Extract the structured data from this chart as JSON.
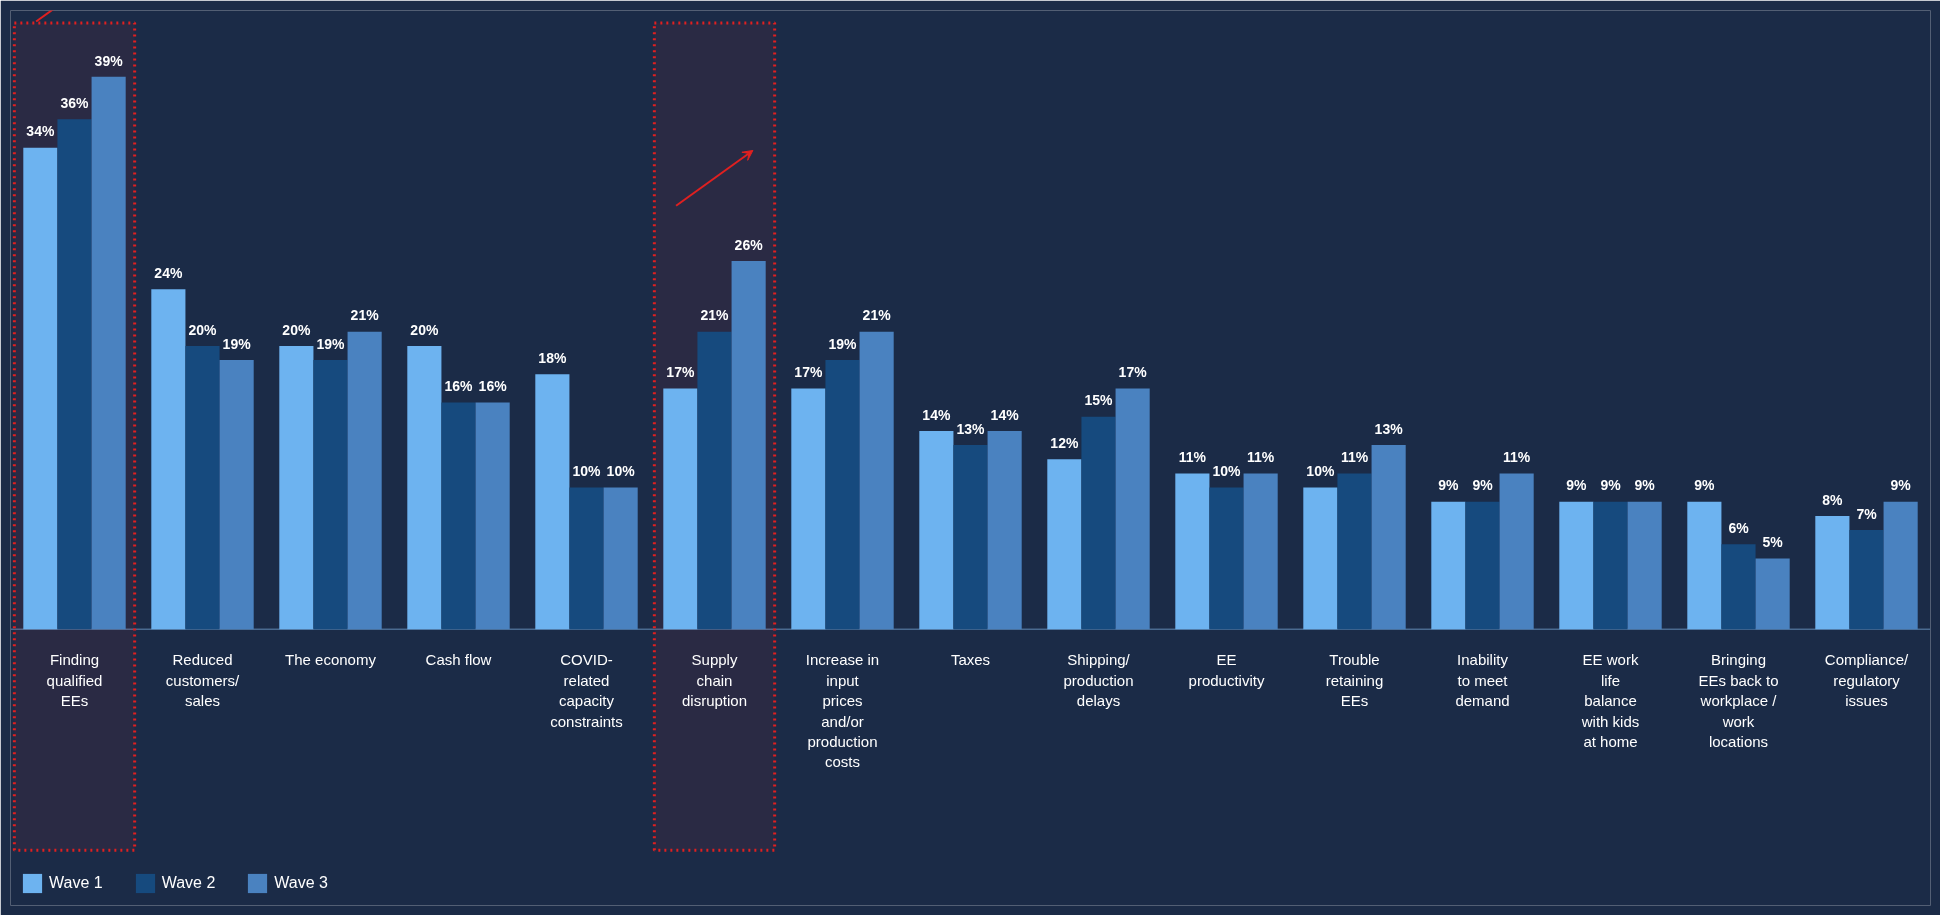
{
  "chart_data": {
    "type": "bar",
    "categories": [
      "Finding qualified EEs",
      "Reduced customers/ sales",
      "The economy",
      "Cash flow",
      "COVID-related capacity constraints",
      "Supply chain disruption",
      "Increase in input prices and/or production costs",
      "Taxes",
      "Shipping/ production delays",
      "EE productivity",
      "Trouble retaining EEs",
      "Inability to meet demand",
      "EE work life balance with kids at home",
      "Bringing EEs back to workplace / work locations",
      "Compliance/ regulatory issues"
    ],
    "series": [
      {
        "name": "Wave 1",
        "color": "#6db3f0",
        "values": [
          34,
          24,
          20,
          20,
          18,
          17,
          17,
          14,
          12,
          11,
          10,
          9,
          9,
          9,
          8
        ],
        "value_labels": [
          "34%",
          "24%",
          "20%",
          "20%",
          "18%",
          "17%",
          "17%",
          "14%",
          "12%",
          "11%",
          "10%",
          "9%",
          "9%",
          "9%",
          "8%"
        ]
      },
      {
        "name": "Wave 2",
        "color": "#164a7e",
        "values": [
          36,
          20,
          19,
          16,
          10,
          21,
          19,
          13,
          15,
          10,
          11,
          9,
          9,
          6,
          7
        ],
        "value_labels": [
          "36%",
          "20%",
          "19%",
          "16%",
          "10%",
          "21%",
          "19%",
          "13%",
          "15%",
          "10%",
          "11%",
          "9%",
          "9%",
          "6%",
          "7%"
        ]
      },
      {
        "name": "Wave 3",
        "color": "#4a82c0",
        "values": [
          39,
          19,
          21,
          16,
          10,
          26,
          21,
          14,
          17,
          11,
          13,
          11,
          9,
          5,
          9
        ],
        "value_labels": [
          "39%",
          "19%",
          "21%",
          "16%",
          "10%",
          "26%",
          "21%",
          "14%",
          "17%",
          "11%",
          "13%",
          "11%",
          "9%",
          "5%",
          "9%"
        ]
      }
    ],
    "bands": [
      {
        "axis": "x",
        "from": "Finding qualified EEs",
        "to": "Finding qualified EEs",
        "color": "#e02020"
      },
      {
        "axis": "x",
        "from": "Supply chain disruption",
        "to": "Supply chain disruption",
        "color": "#e02020"
      }
    ],
    "legend": "bottom left",
    "grid": false
  }
}
